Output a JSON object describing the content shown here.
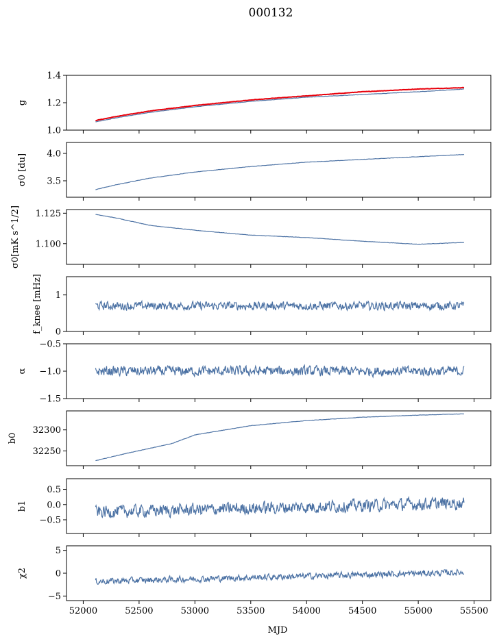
{
  "suptitle": "000132",
  "xlabel": "MJD",
  "colors": {
    "series": "#4c72a4",
    "reference": "#e8000b",
    "axes": "#000000"
  },
  "x_axis": {
    "range": [
      51850,
      55650
    ],
    "ticks": [
      52000,
      52500,
      53000,
      53500,
      54000,
      54500,
      55000,
      55500
    ],
    "data_range": [
      52110,
      55410
    ]
  },
  "chart_data": [
    {
      "type": "line",
      "ylabel": "g",
      "ylim": [
        1.0,
        1.4
      ],
      "yticks": [
        1.0,
        1.2,
        1.4
      ],
      "ytick_labels": [
        "1.0",
        "1.2",
        "1.4"
      ],
      "series": [
        {
          "color": "#4c72a4",
          "x": [
            52110,
            52300,
            52600,
            53000,
            53500,
            54000,
            54500,
            55000,
            55410
          ],
          "y": [
            1.06,
            1.09,
            1.13,
            1.17,
            1.21,
            1.24,
            1.26,
            1.28,
            1.3
          ]
        },
        {
          "color": "#e8000b",
          "x": [
            52110,
            52300,
            52600,
            53000,
            53500,
            54000,
            54500,
            55000,
            55410
          ],
          "y": [
            1.07,
            1.1,
            1.14,
            1.18,
            1.22,
            1.25,
            1.28,
            1.3,
            1.31
          ]
        }
      ]
    },
    {
      "type": "line",
      "ylabel": "σ0 [du]",
      "ylim": [
        3.2,
        4.2
      ],
      "yticks": [
        3.5,
        4.0
      ],
      "ytick_labels": [
        "3.5",
        "4.0"
      ],
      "series": [
        {
          "color": "#4c72a4",
          "x": [
            52110,
            52300,
            52600,
            53000,
            53500,
            54000,
            54500,
            55000,
            55410
          ],
          "y": [
            3.34,
            3.43,
            3.55,
            3.66,
            3.76,
            3.84,
            3.89,
            3.94,
            3.98
          ]
        }
      ]
    },
    {
      "type": "line",
      "ylabel": "σ0[mK s^1/2]",
      "ylim": [
        1.083,
        1.128
      ],
      "yticks": [
        1.1,
        1.125
      ],
      "ytick_labels": [
        "1.100",
        "1.125"
      ],
      "series": [
        {
          "color": "#4c72a4",
          "x": [
            52110,
            52300,
            52600,
            53000,
            53500,
            54000,
            54500,
            55000,
            55410
          ],
          "y": [
            1.124,
            1.121,
            1.115,
            1.111,
            1.107,
            1.105,
            1.102,
            1.0995,
            1.101
          ]
        }
      ]
    },
    {
      "type": "line",
      "ylabel": "f_knee [mHz]",
      "ylim": [
        0,
        1.5
      ],
      "yticks": [
        0,
        1
      ],
      "ytick_labels": [
        "0",
        "1"
      ],
      "series": [
        {
          "color": "#4c72a4",
          "x": [
            52110,
            55410
          ],
          "y": [
            0.7,
            0.7
          ],
          "noise": 0.1
        }
      ]
    },
    {
      "type": "line",
      "ylabel": "α",
      "ylim": [
        -1.5,
        -0.5
      ],
      "yticks": [
        -1.5,
        -1.0,
        -0.5
      ],
      "ytick_labels": [
        "−1.5",
        "−1.0",
        "−0.5"
      ],
      "series": [
        {
          "color": "#4c72a4",
          "x": [
            52110,
            55410
          ],
          "y": [
            -1.0,
            -1.0
          ],
          "noise": 0.08
        }
      ]
    },
    {
      "type": "line",
      "ylabel": "b0",
      "ylim": [
        32215,
        32345
      ],
      "yticks": [
        32250,
        32300
      ],
      "ytick_labels": [
        "32250",
        "32300"
      ],
      "series": [
        {
          "color": "#4c72a4",
          "x": [
            52110,
            52400,
            52800,
            53000,
            53500,
            54000,
            54500,
            55000,
            55410
          ],
          "y": [
            32227,
            32245,
            32268,
            32288,
            32310,
            32322,
            32330,
            32335,
            32338
          ]
        }
      ]
    },
    {
      "type": "line",
      "ylabel": "b1",
      "ylim": [
        -0.95,
        0.85
      ],
      "yticks": [
        -0.5,
        0.0,
        0.5
      ],
      "ytick_labels": [
        "−0.5",
        "0.0",
        "0.5"
      ],
      "series": [
        {
          "color": "#4c72a4",
          "x": [
            52110,
            55410
          ],
          "y": [
            -0.25,
            0.05
          ],
          "noise": 0.18
        }
      ]
    },
    {
      "type": "line",
      "ylabel": "χ2",
      "ylim": [
        -6,
        6
      ],
      "yticks": [
        -5,
        0,
        5
      ],
      "ytick_labels": [
        "−5",
        "0",
        "5"
      ],
      "series": [
        {
          "color": "#4c72a4",
          "x": [
            52110,
            55410
          ],
          "y": [
            -1.8,
            0.2
          ],
          "noise": 0.6
        }
      ]
    }
  ]
}
